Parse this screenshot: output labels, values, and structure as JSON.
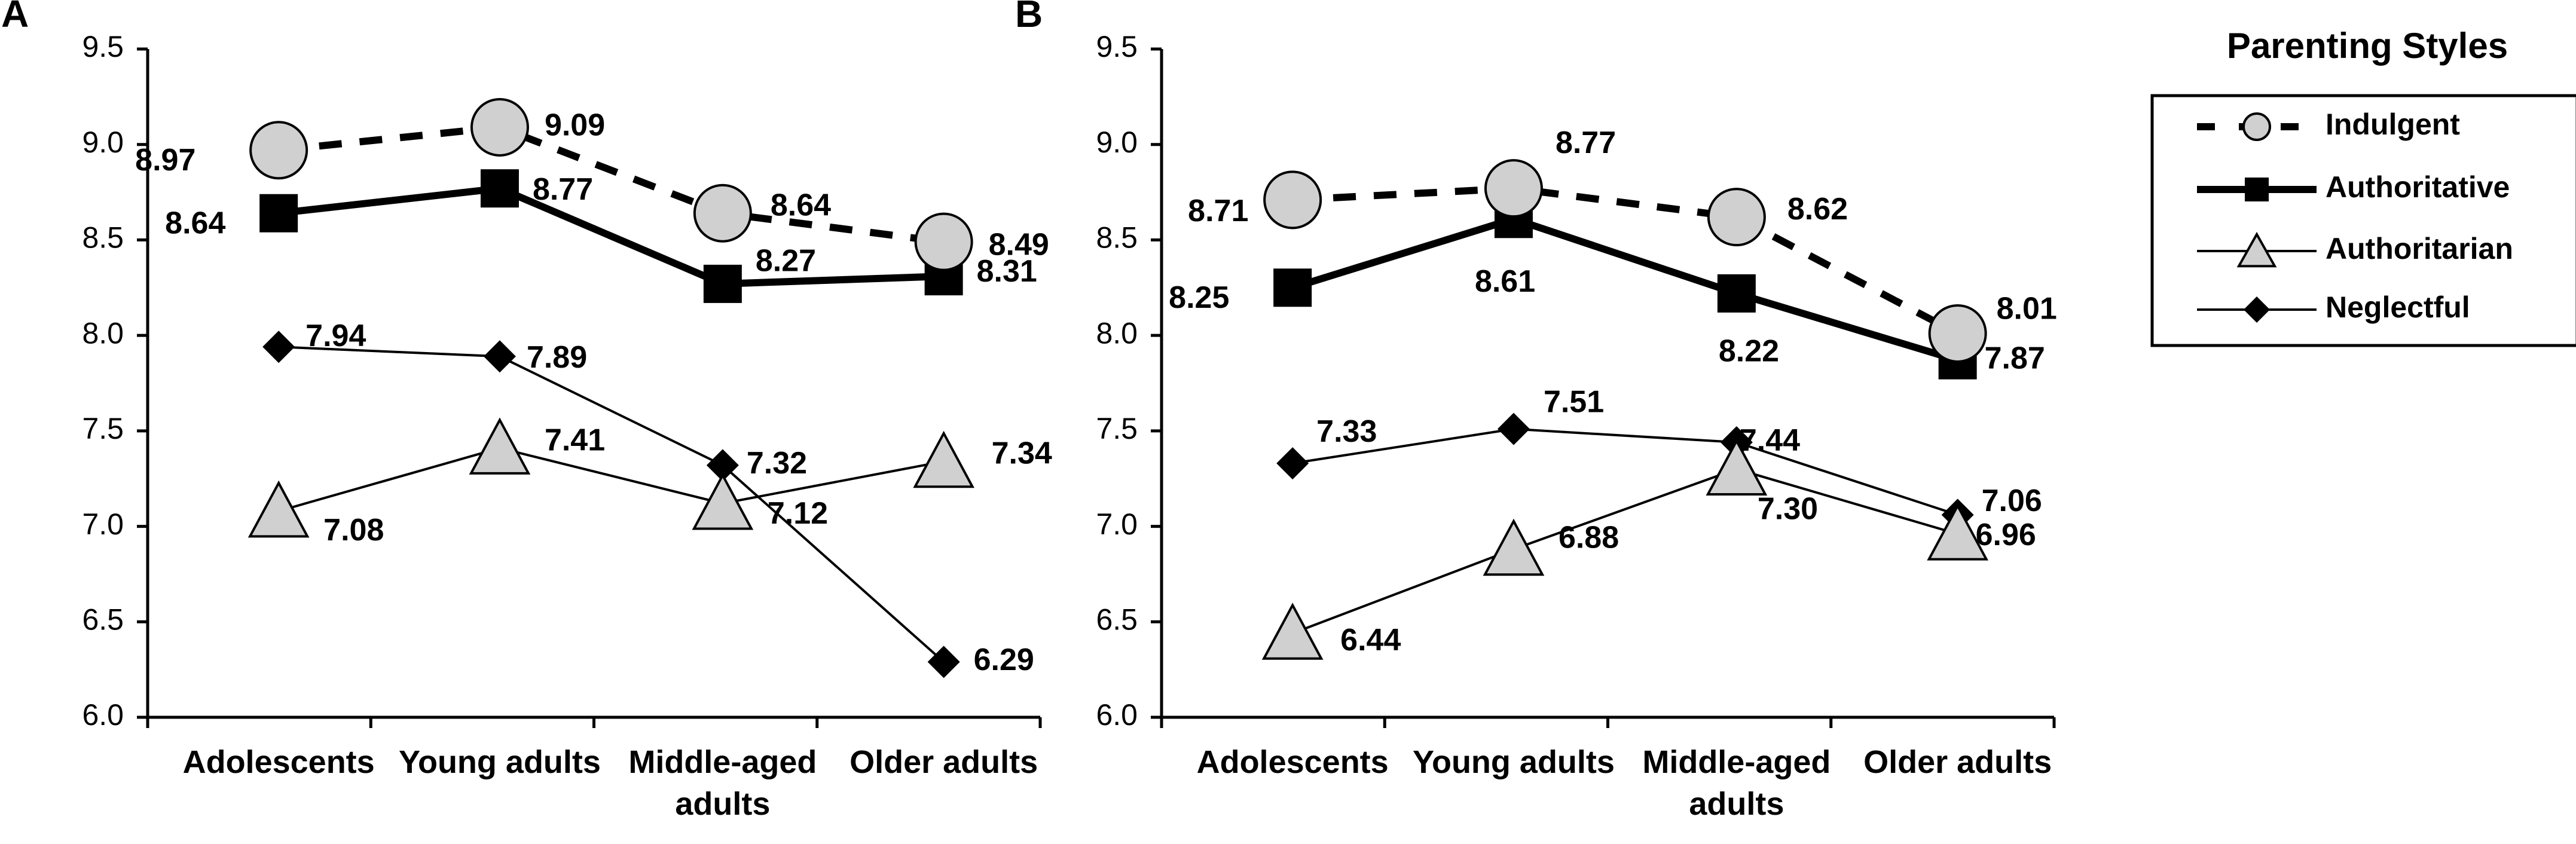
{
  "legend": {
    "title": "Parenting Styles",
    "entries": [
      "Indulgent",
      "Authoritative",
      "Authoritarian",
      "Neglectful"
    ]
  },
  "colors": {
    "marker_fill": "#d0d0d0",
    "line": "#000000",
    "diamond": "#000000"
  },
  "chart_data": [
    {
      "panel": "A",
      "type": "line",
      "categories": [
        "Adolescents",
        "Young adults",
        "Middle-aged adults",
        "Older adults"
      ],
      "category_lines": [
        [
          "Adolescents"
        ],
        [
          "Young adults"
        ],
        [
          "Middle-aged",
          "adults"
        ],
        [
          "Older adults"
        ]
      ],
      "ylim": [
        6.0,
        9.5
      ],
      "yticks": [
        "6.0",
        "6.5",
        "7.0",
        "7.5",
        "8.0",
        "8.5",
        "9.0",
        "9.5"
      ],
      "series": [
        {
          "name": "Indulgent",
          "values": [
            8.97,
            9.09,
            8.64,
            8.49
          ],
          "labels": [
            "8.97",
            "9.09",
            "8.64",
            "8.49"
          ]
        },
        {
          "name": "Authoritative",
          "values": [
            8.64,
            8.77,
            8.27,
            8.31
          ],
          "labels": [
            "8.64",
            "8.77",
            "8.27",
            "8.31"
          ]
        },
        {
          "name": "Authoritarian",
          "values": [
            7.08,
            7.41,
            7.12,
            7.34
          ],
          "labels": [
            "7.08",
            "7.41",
            "7.12",
            "7.34"
          ]
        },
        {
          "name": "Neglectful",
          "values": [
            7.94,
            7.89,
            7.32,
            6.29
          ],
          "labels": [
            "7.94",
            "7.89",
            "7.32",
            "6.29"
          ]
        }
      ]
    },
    {
      "panel": "B",
      "type": "line",
      "categories": [
        "Adolescents",
        "Young adults",
        "Middle-aged adults",
        "Older adults"
      ],
      "category_lines": [
        [
          "Adolescents"
        ],
        [
          "Young adults"
        ],
        [
          "Middle-aged",
          "adults"
        ],
        [
          "Older adults"
        ]
      ],
      "ylim": [
        6.0,
        9.5
      ],
      "yticks": [
        "6.0",
        "6.5",
        "7.0",
        "7.5",
        "8.0",
        "8.5",
        "9.0",
        "9.5"
      ],
      "series": [
        {
          "name": "Indulgent",
          "values": [
            8.71,
            8.77,
            8.62,
            8.01
          ],
          "labels": [
            "8.71",
            "8.77",
            "8.62",
            "8.01"
          ]
        },
        {
          "name": "Authoritative",
          "values": [
            8.25,
            8.61,
            8.22,
            7.87
          ],
          "labels": [
            "8.25",
            "8.61",
            "8.22",
            "7.87"
          ]
        },
        {
          "name": "Authoritarian",
          "values": [
            6.44,
            6.88,
            7.3,
            6.96
          ],
          "labels": [
            "6.44",
            "6.88",
            "7.30",
            "6.96"
          ]
        },
        {
          "name": "Neglectful",
          "values": [
            7.33,
            7.51,
            7.44,
            7.06
          ],
          "labels": [
            "7.33",
            "7.51",
            "7.44",
            "7.06"
          ]
        }
      ]
    }
  ]
}
